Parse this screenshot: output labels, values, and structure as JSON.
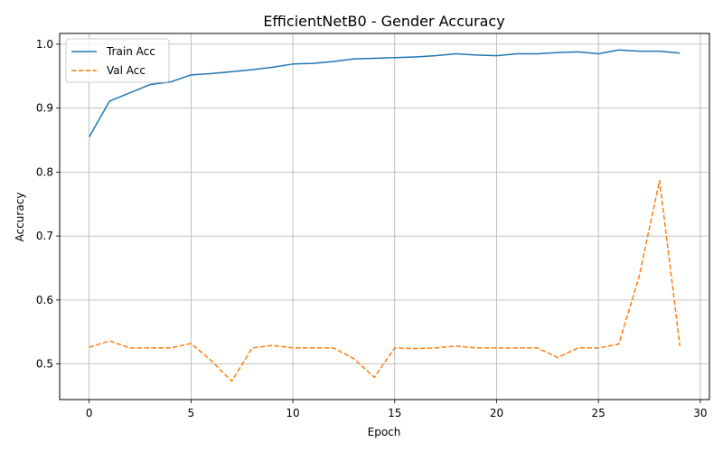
{
  "chart_data": {
    "type": "line",
    "title": "EfficientNetB0 - Gender Accuracy",
    "xlabel": "Epoch",
    "ylabel": "Accuracy",
    "xlim": [
      -1.45,
      30.45
    ],
    "ylim": [
      0.4443,
      1.0168
    ],
    "xticks": [
      0,
      5,
      10,
      15,
      20,
      25,
      30
    ],
    "yticks": [
      0.5,
      0.6,
      0.7,
      0.8,
      0.9,
      1.0
    ],
    "grid": true,
    "legend_position": "top-left",
    "x": [
      0,
      1,
      2,
      3,
      4,
      5,
      6,
      7,
      8,
      9,
      10,
      11,
      12,
      13,
      14,
      15,
      16,
      17,
      18,
      19,
      20,
      21,
      22,
      23,
      24,
      25,
      26,
      27,
      28,
      29
    ],
    "series": [
      {
        "name": "Train Acc",
        "color": "#1f77b4",
        "style": "solid",
        "values": [
          0.855,
          0.911,
          0.924,
          0.937,
          0.941,
          0.952,
          0.954,
          0.957,
          0.96,
          0.964,
          0.969,
          0.97,
          0.973,
          0.977,
          0.978,
          0.979,
          0.98,
          0.982,
          0.985,
          0.983,
          0.982,
          0.985,
          0.985,
          0.987,
          0.988,
          0.985,
          0.991,
          0.989,
          0.989,
          0.986
        ]
      },
      {
        "name": "Val Acc",
        "color": "#ff7f0e",
        "style": "dashed",
        "values": [
          0.526,
          0.536,
          0.525,
          0.525,
          0.525,
          0.532,
          0.505,
          0.473,
          0.525,
          0.529,
          0.525,
          0.525,
          0.525,
          0.508,
          0.479,
          0.525,
          0.524,
          0.525,
          0.528,
          0.525,
          0.525,
          0.525,
          0.525,
          0.51,
          0.525,
          0.525,
          0.531,
          0.637,
          0.787,
          0.528
        ]
      }
    ]
  }
}
